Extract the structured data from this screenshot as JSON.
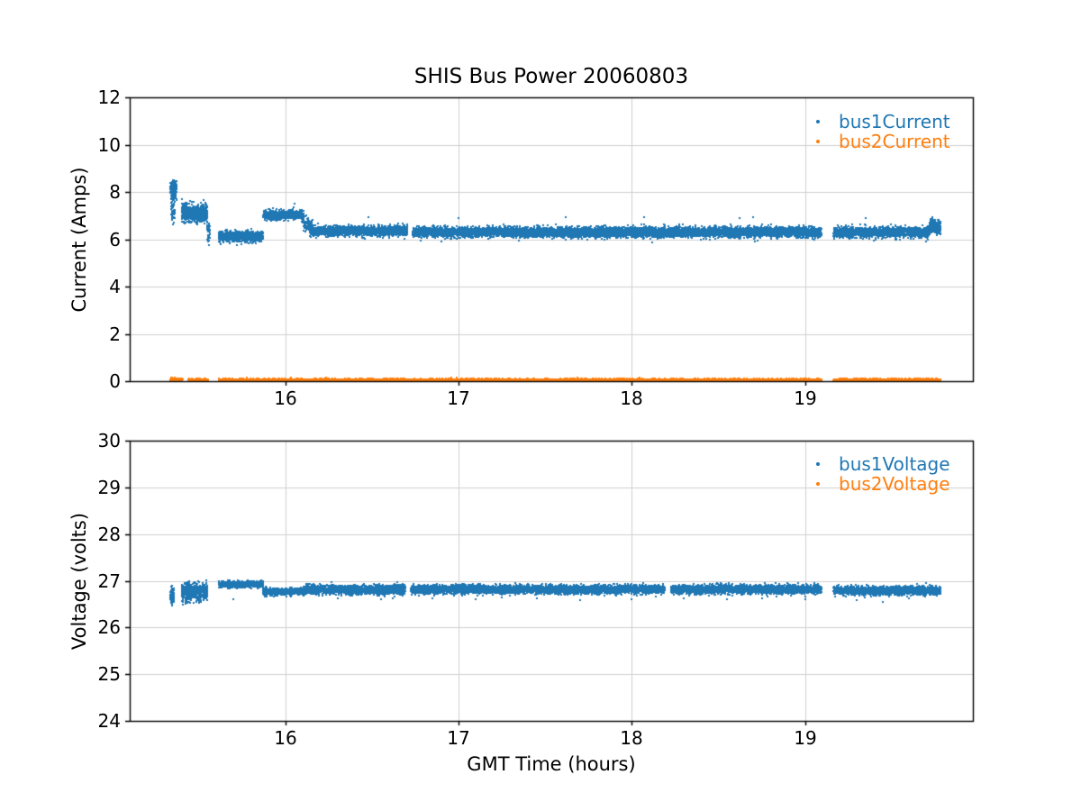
{
  "figure": {
    "background": "#ffffff",
    "title": "SHIS Bus Power 20060803"
  },
  "chart_data": [
    {
      "type": "scatter",
      "title": "SHIS Bus Power 20060803",
      "xlabel": "",
      "ylabel": "Current (Amps)",
      "xlim": [
        15.1,
        19.97
      ],
      "ylim": [
        0,
        12
      ],
      "xticks": [
        "16",
        "17",
        "18",
        "19"
      ],
      "xtick_values": [
        16,
        17,
        18,
        19
      ],
      "yticks": [
        "0",
        "2",
        "4",
        "6",
        "8",
        "10",
        "12"
      ],
      "ytick_values": [
        0,
        2,
        4,
        6,
        8,
        10,
        12
      ],
      "grid": true,
      "grid_color": "#d0d0d0",
      "legend_position": "upper right",
      "legend_frame": false,
      "series": [
        {
          "name": "bus1Current",
          "color": "#1f77b4",
          "marker": "dot",
          "segments": [
            {
              "t": [
                15.335,
                15.37
              ],
              "y": [
                7.7,
                8.45
              ],
              "n": 150
            },
            {
              "t": [
                15.34,
                15.36
              ],
              "y": [
                6.75,
                7.7
              ],
              "n": 50
            },
            {
              "t": [
                15.4,
                15.55
              ],
              "y": [
                6.75,
                7.45
              ],
              "n": 650
            },
            {
              "t": [
                15.548,
                15.562
              ],
              "y": [
                5.8,
                6.8
              ],
              "n": 45
            },
            {
              "t": [
                15.615,
                15.872
              ],
              "y": [
                5.9,
                6.35
              ],
              "n": 850
            },
            {
              "t": [
                15.872,
                16.105
              ],
              "y": [
                6.82,
                7.22
              ],
              "n": 800
            },
            {
              "t": [
                16.105,
                16.155
              ],
              "y": [
                6.35,
                6.9
              ],
              "n": 90
            },
            {
              "t": [
                16.14,
                16.705
              ],
              "y": [
                6.15,
                6.55
              ],
              "n": 2000
            },
            {
              "t": [
                16.735,
                19.095
              ],
              "y": [
                6.1,
                6.5
              ],
              "n": 8500
            },
            {
              "t": [
                19.165,
                19.72
              ],
              "y": [
                6.1,
                6.5
              ],
              "n": 2000
            },
            {
              "t": [
                19.72,
                19.785
              ],
              "y": [
                6.25,
                6.85
              ],
              "n": 250
            }
          ],
          "outliers": [
            [
              16.05,
              7.5
            ],
            [
              16.48,
              6.95
            ],
            [
              17.0,
              6.9
            ],
            [
              17.62,
              6.95
            ],
            [
              18.07,
              6.93
            ],
            [
              18.62,
              6.88
            ],
            [
              18.7,
              6.95
            ],
            [
              16.9,
              5.92
            ],
            [
              18.12,
              5.85
            ],
            [
              18.71,
              5.9
            ],
            [
              19.4,
              5.95
            ],
            [
              17.35,
              5.95
            ],
            [
              19.35,
              6.9
            ],
            [
              19.7,
              5.9
            ]
          ]
        },
        {
          "name": "bus2Current",
          "color": "#ff7f0e",
          "marker": "dot",
          "segments": [
            {
              "t": [
                15.335,
                15.405
              ],
              "y": [
                0.0,
                0.14
              ],
              "n": 130
            },
            {
              "t": [
                15.44,
                15.555
              ],
              "y": [
                0.0,
                0.1
              ],
              "n": 220
            },
            {
              "t": [
                15.615,
                19.095
              ],
              "y": [
                0.0,
                0.1
              ],
              "n": 7000
            },
            {
              "t": [
                19.165,
                19.785
              ],
              "y": [
                0.0,
                0.1
              ],
              "n": 1300
            }
          ],
          "outliers": []
        }
      ]
    },
    {
      "type": "scatter",
      "title": "",
      "xlabel": "GMT Time (hours)",
      "ylabel": "Voltage (volts)",
      "xlim": [
        15.1,
        19.97
      ],
      "ylim": [
        24,
        30
      ],
      "xticks": [
        "16",
        "17",
        "18",
        "19"
      ],
      "xtick_values": [
        16,
        17,
        18,
        19
      ],
      "yticks": [
        "24",
        "25",
        "26",
        "27",
        "28",
        "29",
        "30"
      ],
      "ytick_values": [
        24,
        25,
        26,
        27,
        28,
        29,
        30
      ],
      "grid": true,
      "grid_color": "#d0d0d0",
      "legend_position": "upper right",
      "legend_frame": false,
      "series": [
        {
          "name": "bus1Voltage",
          "color": "#1f77b4",
          "marker": "dot",
          "segments": [
            {
              "t": [
                15.335,
                15.355
              ],
              "y": [
                26.5,
                26.84
              ],
              "n": 130
            },
            {
              "t": [
                15.4,
                15.55
              ],
              "y": [
                26.58,
                26.93
              ],
              "n": 600
            },
            {
              "t": [
                15.615,
                15.872
              ],
              "y": [
                26.86,
                26.98
              ],
              "n": 850
            },
            {
              "t": [
                15.872,
                16.105
              ],
              "y": [
                26.7,
                26.84
              ],
              "n": 800
            },
            {
              "t": [
                16.105,
                16.69
              ],
              "y": [
                26.72,
                26.9
              ],
              "n": 2100
            },
            {
              "t": [
                16.725,
                18.19
              ],
              "y": [
                26.73,
                26.9
              ],
              "n": 5200
            },
            {
              "t": [
                18.225,
                19.095
              ],
              "y": [
                26.73,
                26.9
              ],
              "n": 3100
            },
            {
              "t": [
                19.165,
                19.785
              ],
              "y": [
                26.7,
                26.88
              ],
              "n": 2200
            }
          ],
          "outliers": [
            [
              15.7,
              26.6
            ],
            [
              16.3,
              26.62
            ],
            [
              16.55,
              26.6
            ],
            [
              16.62,
              26.63
            ],
            [
              16.85,
              26.63
            ],
            [
              17.1,
              26.6
            ],
            [
              17.25,
              26.65
            ],
            [
              17.45,
              26.62
            ],
            [
              17.7,
              26.58
            ],
            [
              18.0,
              26.6
            ],
            [
              18.3,
              26.62
            ],
            [
              18.55,
              26.6
            ],
            [
              18.75,
              26.63
            ],
            [
              19.0,
              26.6
            ],
            [
              19.3,
              26.58
            ],
            [
              19.6,
              26.62
            ],
            [
              19.45,
              26.55
            ]
          ]
        },
        {
          "name": "bus2Voltage",
          "color": "#ff7f0e",
          "marker": "dot",
          "segments": [],
          "outliers": []
        }
      ]
    }
  ]
}
